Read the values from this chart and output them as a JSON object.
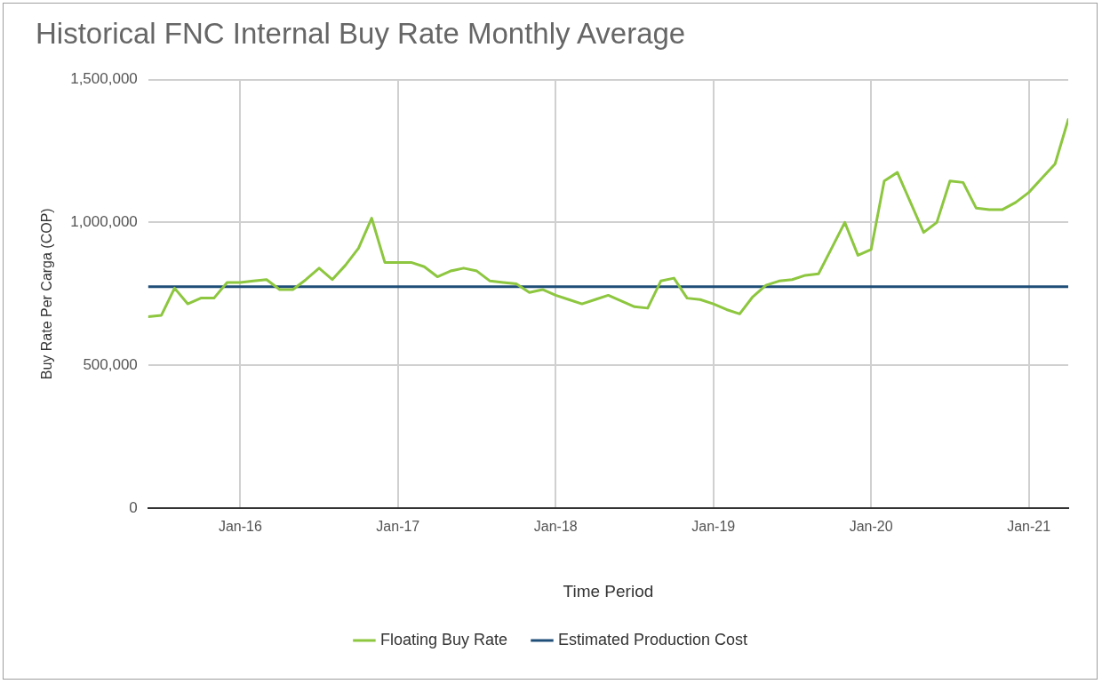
{
  "chart_data": {
    "type": "line",
    "title": "Historical FNC Internal Buy Rate Monthly Average",
    "xlabel": "Time Period",
    "ylabel": "Buy Rate Per Carga (COP)",
    "xlim": [
      "2015-06",
      "2021-04"
    ],
    "xticks": [
      {
        "value": "2016-01",
        "label": "Jan-16"
      },
      {
        "value": "2017-01",
        "label": "Jan-17"
      },
      {
        "value": "2018-01",
        "label": "Jan-18"
      },
      {
        "value": "2019-01",
        "label": "Jan-19"
      },
      {
        "value": "2020-01",
        "label": "Jan-20"
      },
      {
        "value": "2021-01",
        "label": "Jan-21"
      }
    ],
    "ylim": [
      0,
      1500000
    ],
    "yticks": [
      {
        "value": 0,
        "label": "0"
      },
      {
        "value": 500000,
        "label": "500,000"
      },
      {
        "value": 1000000,
        "label": "1,000,000"
      },
      {
        "value": 1500000,
        "label": "1,500,000"
      }
    ],
    "grid": true,
    "legend": "bottom",
    "marker": "none",
    "line_style": "solid",
    "series": [
      {
        "name": "Floating Buy Rate",
        "color": "#8dc63f",
        "x": [
          "2015-06",
          "2015-07",
          "2015-08",
          "2015-09",
          "2015-10",
          "2015-11",
          "2015-12",
          "2016-01",
          "2016-02",
          "2016-03",
          "2016-04",
          "2016-05",
          "2016-06",
          "2016-07",
          "2016-08",
          "2016-09",
          "2016-10",
          "2016-11",
          "2016-12",
          "2017-01",
          "2017-02",
          "2017-03",
          "2017-04",
          "2017-05",
          "2017-06",
          "2017-07",
          "2017-08",
          "2017-09",
          "2017-10",
          "2017-11",
          "2017-12",
          "2018-01",
          "2018-02",
          "2018-03",
          "2018-04",
          "2018-05",
          "2018-06",
          "2018-07",
          "2018-08",
          "2018-09",
          "2018-10",
          "2018-11",
          "2018-12",
          "2019-01",
          "2019-02",
          "2019-03",
          "2019-04",
          "2019-05",
          "2019-06",
          "2019-07",
          "2019-08",
          "2019-09",
          "2019-10",
          "2019-11",
          "2019-12",
          "2020-01",
          "2020-02",
          "2020-03",
          "2020-04",
          "2020-05",
          "2020-06",
          "2020-07",
          "2020-08",
          "2020-09",
          "2020-10",
          "2020-11",
          "2020-12",
          "2021-01",
          "2021-02",
          "2021-03",
          "2021-04"
        ],
        "values": [
          670000,
          675000,
          770000,
          715000,
          735000,
          735000,
          790000,
          790000,
          795000,
          800000,
          765000,
          765000,
          800000,
          840000,
          800000,
          850000,
          910000,
          1015000,
          860000,
          860000,
          860000,
          845000,
          810000,
          830000,
          840000,
          830000,
          795000,
          790000,
          785000,
          755000,
          765000,
          745000,
          730000,
          715000,
          730000,
          745000,
          725000,
          705000,
          700000,
          795000,
          805000,
          735000,
          730000,
          715000,
          695000,
          680000,
          740000,
          780000,
          795000,
          800000,
          815000,
          820000,
          910000,
          1000000,
          885000,
          905000,
          1145000,
          1175000,
          1070000,
          965000,
          1000000,
          1145000,
          1140000,
          1050000,
          1045000,
          1045000,
          1070000,
          1105000,
          1155000,
          1205000,
          1360000
        ]
      },
      {
        "name": "Estimated Production Cost",
        "color": "#1f4e79",
        "x": [
          "2015-06",
          "2021-04"
        ],
        "values": [
          775000,
          775000
        ]
      }
    ]
  }
}
